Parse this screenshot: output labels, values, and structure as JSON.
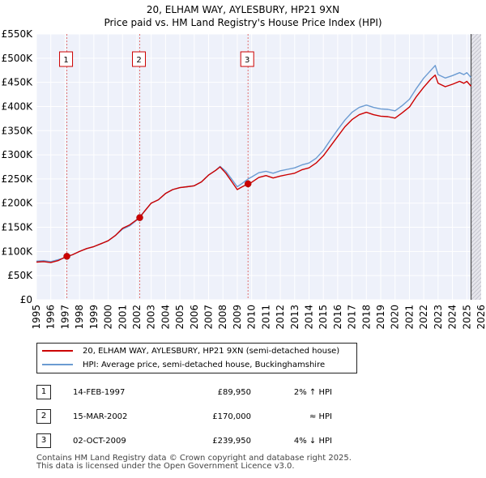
{
  "chart_data": {
    "type": "line",
    "title": "20, ELHAM WAY, AYLESBURY, HP21 9XN",
    "subtitle": "Price paid vs. HM Land Registry's House Price Index (HPI)",
    "ylim": [
      0,
      550000
    ],
    "xlim": [
      1995,
      2026
    ],
    "y_ticks": [
      {
        "value": 0,
        "label": "£0"
      },
      {
        "value": 50000,
        "label": "£50K"
      },
      {
        "value": 100000,
        "label": "£100K"
      },
      {
        "value": 150000,
        "label": "£150K"
      },
      {
        "value": 200000,
        "label": "£200K"
      },
      {
        "value": 250000,
        "label": "£250K"
      },
      {
        "value": 300000,
        "label": "£300K"
      },
      {
        "value": 350000,
        "label": "£350K"
      },
      {
        "value": 400000,
        "label": "£400K"
      },
      {
        "value": 450000,
        "label": "£450K"
      },
      {
        "value": 500000,
        "label": "£500K"
      },
      {
        "value": 550000,
        "label": "£550K"
      }
    ],
    "x_ticks": [
      "1995",
      "1996",
      "1997",
      "1998",
      "1999",
      "2000",
      "2001",
      "2002",
      "2003",
      "2004",
      "2005",
      "2006",
      "2007",
      "2008",
      "2009",
      "2010",
      "2011",
      "2012",
      "2013",
      "2014",
      "2015",
      "2016",
      "2017",
      "2018",
      "2019",
      "2020",
      "2021",
      "2022",
      "2023",
      "2024",
      "2025",
      "2026"
    ],
    "grid": true,
    "data_end_year": 2025.3,
    "series": [
      {
        "name": "20, ELHAM WAY, AYLESBURY, HP21 9XN (semi-detached house)",
        "color": "#cc0000",
        "x": [
          1995.0,
          1995.5,
          1996.0,
          1996.5,
          1997.12,
          1997.5,
          1998.0,
          1998.5,
          1999.0,
          1999.5,
          2000.0,
          2000.5,
          2001.0,
          2001.5,
          2002.2,
          2002.5,
          2003.0,
          2003.5,
          2004.0,
          2004.5,
          2005.0,
          2005.5,
          2006.0,
          2006.5,
          2007.0,
          2007.5,
          2007.8,
          2008.2,
          2008.6,
          2009.0,
          2009.3,
          2009.75,
          2010.0,
          2010.5,
          2011.0,
          2011.5,
          2012.0,
          2012.5,
          2013.0,
          2013.5,
          2014.0,
          2014.5,
          2015.0,
          2015.5,
          2016.0,
          2016.5,
          2017.0,
          2017.5,
          2018.0,
          2018.5,
          2019.0,
          2019.5,
          2020.0,
          2020.5,
          2021.0,
          2021.5,
          2022.0,
          2022.5,
          2022.8,
          2023.0,
          2023.5,
          2024.0,
          2024.5,
          2024.8,
          2025.0,
          2025.3
        ],
        "y": [
          78000,
          79000,
          77000,
          81000,
          89950,
          93000,
          100000,
          106000,
          110000,
          116000,
          122000,
          133000,
          148000,
          155000,
          170000,
          182000,
          200000,
          207000,
          220000,
          228000,
          232000,
          234000,
          236000,
          244000,
          258000,
          268000,
          275000,
          262000,
          245000,
          228000,
          233000,
          239950,
          243000,
          253000,
          257000,
          252000,
          256000,
          259000,
          262000,
          269000,
          273000,
          283000,
          298000,
          318000,
          338000,
          358000,
          373000,
          383000,
          388000,
          383000,
          380000,
          379000,
          376000,
          387000,
          399000,
          421000,
          440000,
          457000,
          465000,
          448000,
          441000,
          446000,
          452000,
          448000,
          452000,
          442000
        ]
      },
      {
        "name": "HPI: Average price, semi-detached house, Buckinghamshire",
        "color": "#6b9bd2",
        "x": [
          1995.0,
          1995.5,
          1996.0,
          1996.5,
          1997.0,
          1997.5,
          1998.0,
          1998.5,
          1999.0,
          1999.5,
          2000.0,
          2000.5,
          2001.0,
          2001.5,
          2002.0,
          2002.5,
          2003.0,
          2003.5,
          2004.0,
          2004.5,
          2005.0,
          2005.5,
          2006.0,
          2006.5,
          2007.0,
          2007.5,
          2007.8,
          2008.2,
          2008.6,
          2009.0,
          2009.3,
          2009.75,
          2010.0,
          2010.5,
          2011.0,
          2011.5,
          2012.0,
          2012.5,
          2013.0,
          2013.5,
          2014.0,
          2014.5,
          2015.0,
          2015.5,
          2016.0,
          2016.5,
          2017.0,
          2017.5,
          2018.0,
          2018.5,
          2019.0,
          2019.5,
          2020.0,
          2020.5,
          2021.0,
          2021.5,
          2022.0,
          2022.5,
          2022.8,
          2023.0,
          2023.5,
          2024.0,
          2024.5,
          2024.8,
          2025.0,
          2025.3
        ],
        "y": [
          80000,
          81000,
          79000,
          83000,
          87000,
          93000,
          100000,
          106000,
          110000,
          116000,
          122000,
          133000,
          146000,
          153000,
          165000,
          182000,
          200000,
          207000,
          220000,
          228000,
          232000,
          234000,
          236000,
          244000,
          258000,
          268000,
          276000,
          266000,
          250000,
          234000,
          240000,
          250000,
          254000,
          263000,
          266000,
          262000,
          267000,
          270000,
          273000,
          279000,
          283000,
          293000,
          309000,
          331000,
          352000,
          372000,
          388000,
          398000,
          403000,
          398000,
          395000,
          394000,
          391000,
          402000,
          415000,
          438000,
          459000,
          475000,
          485000,
          466000,
          459000,
          464000,
          470000,
          466000,
          470000,
          460000
        ]
      }
    ],
    "sales": [
      {
        "num": "1",
        "x": 1997.12,
        "y": 89950,
        "date": "14-FEB-1997",
        "price": "£89,950",
        "hpi": "2% ↑ HPI"
      },
      {
        "num": "2",
        "x": 2002.2,
        "y": 170000,
        "date": "15-MAR-2002",
        "price": "£170,000",
        "hpi": "≈ HPI"
      },
      {
        "num": "3",
        "x": 2009.75,
        "y": 239950,
        "date": "02-OCT-2009",
        "price": "£239,950",
        "hpi": "4% ↓ HPI"
      }
    ]
  },
  "legend": {
    "property_label": "20, ELHAM WAY, AYLESBURY, HP21 9XN (semi-detached house)",
    "hpi_label": "HPI: Average price, semi-detached house, Buckinghamshire",
    "property_color": "#cc0000",
    "hpi_color": "#6b9bd2"
  },
  "footer": {
    "line1": "Contains HM Land Registry data © Crown copyright and database right 2025.",
    "line2": "This data is licensed under the Open Government Licence v3.0."
  }
}
